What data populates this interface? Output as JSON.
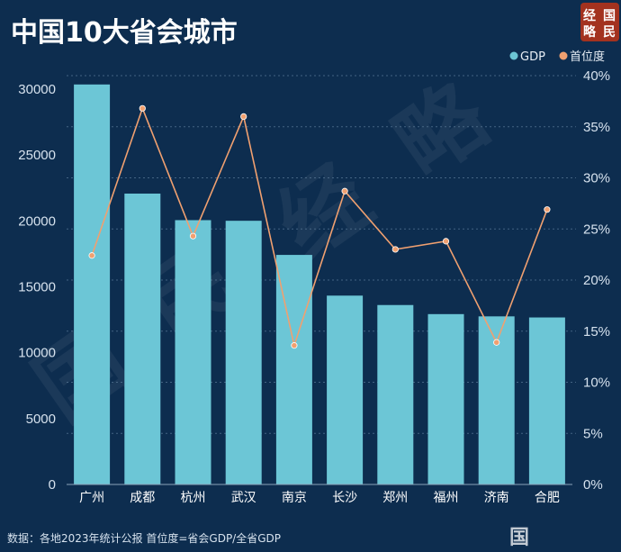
{
  "chart_data": {
    "type": "bar",
    "title": "中国10大省会城市",
    "categories": [
      "广州",
      "成都",
      "杭州",
      "武汉",
      "南京",
      "长沙",
      "郑州",
      "福州",
      "济南",
      "合肥"
    ],
    "series": [
      {
        "name": "GDP",
        "type": "bar",
        "axis": "left",
        "color": "#6cc6d6",
        "values": [
          30355,
          22074,
          20059,
          20011,
          17421,
          14331,
          13617,
          12928,
          12757,
          12674
        ]
      },
      {
        "name": "首位度",
        "type": "line",
        "axis": "right",
        "color": "#f0a070",
        "values": [
          22.4,
          36.8,
          24.3,
          36.0,
          13.6,
          28.7,
          23.0,
          23.8,
          13.9,
          26.9
        ]
      }
    ],
    "y_left": {
      "ylim": [
        0,
        30000
      ],
      "ticks": [
        "0",
        "5000",
        "10000",
        "15000",
        "20000",
        "25000",
        "30000"
      ]
    },
    "y_right": {
      "ylim": [
        0,
        40
      ],
      "ticks": [
        "0%",
        "5%",
        "10%",
        "15%",
        "20%",
        "25%",
        "30%",
        "35%",
        "40%"
      ]
    },
    "legend": {
      "placement": "top-right"
    },
    "grid": true,
    "source": "数据：各地2023年统计公报 首位度=省会GDP/全省GDP"
  },
  "logo": {
    "chars": [
      "经",
      "国",
      "略",
      "民"
    ],
    "color": "#a3321f"
  },
  "watermark": {
    "chars": [
      "国",
      "民",
      "经",
      "略"
    ]
  },
  "bottom_logo": "国"
}
